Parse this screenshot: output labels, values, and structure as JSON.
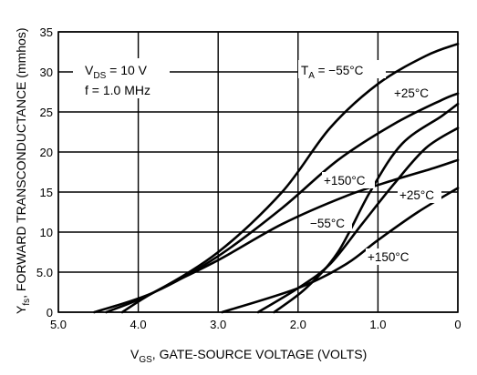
{
  "chart_data": {
    "type": "line",
    "title": "",
    "xlabel": {
      "prefix": "V",
      "sub": "GS",
      "text": ", GATE-SOURCE VOLTAGE (VOLTS)"
    },
    "ylabel": {
      "prefix": "Y",
      "sub": "fs",
      "text": ", FORWARD TRANSCONDUCTANCE (mmhos)"
    },
    "xlim": [
      5.0,
      0
    ],
    "ylim": [
      0,
      35
    ],
    "x_reversed": true,
    "grid": true,
    "x_ticks": [
      "5.0",
      "4.0",
      "3.0",
      "2.0",
      "1.0",
      "0"
    ],
    "y_ticks": [
      "0",
      "5.0",
      "10",
      "15",
      "20",
      "25",
      "30",
      "35"
    ],
    "annotations": {
      "vds": {
        "prefix": "V",
        "sub": "DS",
        "text": " = 10 V"
      },
      "freq": "f = 1.0 MHz"
    },
    "series": [
      {
        "name": "T_A = -55°C (upper)",
        "x": [
          4.4,
          3.8,
          3.0,
          2.2,
          1.6,
          1.0,
          0.4,
          0
        ],
        "y": [
          0,
          2.5,
          7.5,
          15,
          23,
          28.5,
          32,
          33.5
        ]
      },
      {
        "name": "+25°C (upper)",
        "x": [
          4.55,
          3.8,
          3.0,
          2.2,
          1.5,
          0.8,
          0.2,
          0
        ],
        "y": [
          0,
          2.5,
          7,
          13,
          19,
          23.5,
          26.5,
          27.3
        ]
      },
      {
        "name": "+150°C (upper)",
        "x": [
          4.2,
          3.8,
          3.0,
          2.2,
          1.4,
          0.8,
          0.3,
          0
        ],
        "y": [
          0,
          2.5,
          6.5,
          11,
          14.5,
          16.5,
          18,
          19
        ]
      },
      {
        "name": "-55°C (lower)",
        "x": [
          2.3,
          1.9,
          1.5,
          1.1,
          0.7,
          0.2,
          0
        ],
        "y": [
          0,
          3,
          7.5,
          15,
          21,
          24.5,
          26
        ]
      },
      {
        "name": "+25°C (lower)",
        "x": [
          2.5,
          2.0,
          1.6,
          1.2,
          0.8,
          0.4,
          0
        ],
        "y": [
          0,
          3,
          6,
          11,
          16,
          20.5,
          23
        ]
      },
      {
        "name": "+150°C (lower)",
        "x": [
          2.95,
          2.0,
          1.4,
          1.0,
          0.5,
          0
        ],
        "y": [
          0,
          3,
          6,
          9,
          12.5,
          15.5
        ]
      }
    ],
    "curve_labels": [
      {
        "prefix": "T",
        "sub": "A",
        "text": " = −55°C"
      },
      {
        "text": "+25°C"
      },
      {
        "text": "+150°C"
      },
      {
        "text": "−55°C"
      },
      {
        "text": "+25°C"
      },
      {
        "text": "+150°C"
      }
    ]
  },
  "colors": {
    "line": "#000000",
    "grid": "#000000",
    "background": "#ffffff"
  }
}
